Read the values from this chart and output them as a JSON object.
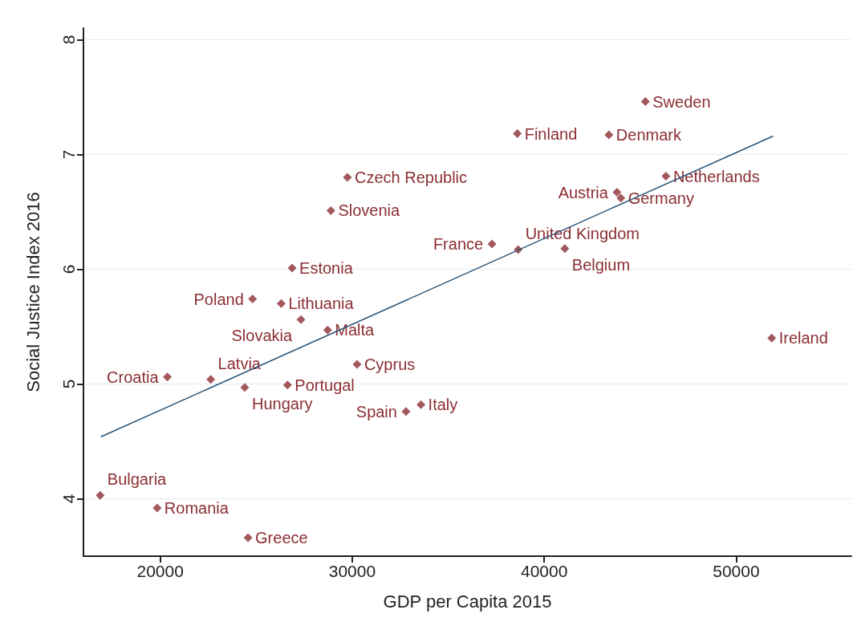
{
  "chart_data": {
    "type": "scatter",
    "xlabel": "GDP per Capita 2015",
    "ylabel": "Social Justice Index 2016",
    "xlim": [
      16000,
      56000
    ],
    "xticks": [
      20000,
      30000,
      40000,
      50000
    ],
    "ylim": [
      3.5,
      8.1
    ],
    "yticks": [
      4,
      5,
      6,
      7,
      8
    ],
    "grid": "y",
    "series": [
      {
        "color": "#8b2e33",
        "marker": "diamond",
        "x": [
          16870,
          19840,
          24570,
          20370,
          22630,
          24400,
          26630,
          24810,
          26300,
          27330,
          28720,
          30250,
          26870,
          28890,
          29750,
          32800,
          33580,
          37280,
          38640,
          41070,
          38600,
          43370,
          45270,
          46340,
          43790,
          43990,
          51850
        ],
        "values": [
          4.03,
          3.92,
          3.66,
          5.06,
          5.04,
          4.97,
          4.99,
          5.74,
          5.7,
          5.56,
          5.47,
          5.17,
          6.01,
          6.51,
          6.8,
          4.76,
          4.82,
          6.22,
          6.17,
          6.18,
          7.18,
          7.17,
          7.46,
          6.81,
          6.67,
          6.62,
          5.4
        ]
      },
      {
        "type": "line",
        "color": "#2b5577",
        "x": [
          16910,
          51930
        ],
        "values": [
          4.54,
          7.16
        ]
      }
    ],
    "annotations": [
      {
        "text": "Bulgaria",
        "x": 16870,
        "y": 4.03
      },
      {
        "text": "Romania",
        "x": 19840,
        "y": 3.92
      },
      {
        "text": "Greece",
        "x": 24570,
        "y": 3.66
      },
      {
        "text": "Croatia",
        "x": 20370,
        "y": 5.06
      },
      {
        "text": "Latvia",
        "x": 22630,
        "y": 5.04
      },
      {
        "text": "Hungary",
        "x": 24400,
        "y": 4.97
      },
      {
        "text": "Portugal",
        "x": 26630,
        "y": 4.99
      },
      {
        "text": "Poland",
        "x": 24810,
        "y": 5.74
      },
      {
        "text": "Lithuania",
        "x": 26300,
        "y": 5.7
      },
      {
        "text": "Slovakia",
        "x": 27330,
        "y": 5.56
      },
      {
        "text": "Malta",
        "x": 28720,
        "y": 5.47
      },
      {
        "text": "Cyprus",
        "x": 30250,
        "y": 5.17
      },
      {
        "text": "Estonia",
        "x": 26870,
        "y": 6.01
      },
      {
        "text": "Slovenia",
        "x": 28890,
        "y": 6.51
      },
      {
        "text": "Czech Republic",
        "x": 29750,
        "y": 6.8
      },
      {
        "text": "Spain",
        "x": 32800,
        "y": 4.76
      },
      {
        "text": "Italy",
        "x": 33580,
        "y": 4.82
      },
      {
        "text": "France",
        "x": 37280,
        "y": 6.22
      },
      {
        "text": "United Kingdom",
        "x": 38640,
        "y": 6.17
      },
      {
        "text": "Belgium",
        "x": 41070,
        "y": 6.18
      },
      {
        "text": "Finland",
        "x": 38600,
        "y": 7.18
      },
      {
        "text": "Denmark",
        "x": 43370,
        "y": 7.17
      },
      {
        "text": "Sweden",
        "x": 45270,
        "y": 7.46
      },
      {
        "text": "Netherlands",
        "x": 46340,
        "y": 6.81
      },
      {
        "text": "Austria",
        "x": 43790,
        "y": 6.67
      },
      {
        "text": "Germany",
        "x": 43990,
        "y": 6.62
      },
      {
        "text": "Ireland",
        "x": 51850,
        "y": 5.4
      }
    ]
  }
}
